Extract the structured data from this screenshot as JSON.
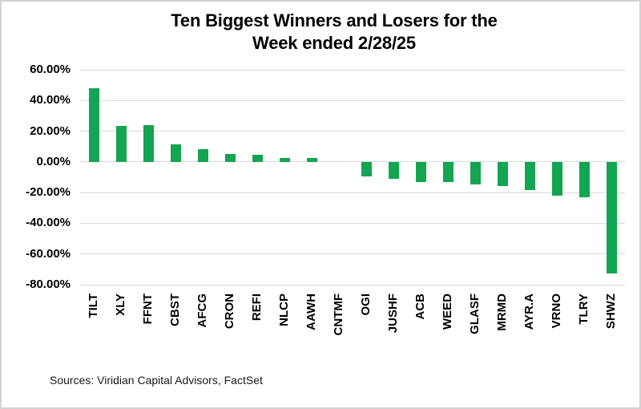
{
  "title": {
    "line1": "Ten Biggest Winners and Losers for the",
    "line2": "Week ended 2/28/25"
  },
  "source": "Sources: Viridian Capital Advisors, FactSet",
  "colors": {
    "bar": "#13a551",
    "gridline": "#d9d9d9",
    "text": "#000000",
    "border": "#d2d2d2"
  },
  "chart_data": {
    "type": "bar",
    "title": "Ten Biggest Winners and Losers for the Week ended 2/28/25",
    "categories": [
      "TILT",
      "XLY",
      "FFNT",
      "CBST",
      "AFCG",
      "CRON",
      "REFI",
      "NLCP",
      "AAWH",
      "CNTMF",
      "OGI",
      "JUSHF",
      "ACB",
      "WEED",
      "GLASF",
      "MRMD",
      "AYR.A",
      "VRNO",
      "TLRY",
      "SHWZ"
    ],
    "values": [
      48.0,
      23.5,
      23.7,
      11.3,
      8.5,
      5.3,
      4.4,
      2.4,
      2.3,
      0.0,
      -9.5,
      -11.3,
      -13.4,
      -13.0,
      -14.8,
      -16.0,
      -18.6,
      -22.0,
      -23.0,
      -72.5
    ],
    "xlabel": "",
    "ylabel": "",
    "ylim": [
      -80,
      60
    ],
    "ytick_step": 20,
    "ytick_labels": [
      "60.00%",
      "40.00%",
      "20.00%",
      "0.00%",
      "-20.00%",
      "-40.00%",
      "-60.00%",
      "-80.00%"
    ],
    "value_format": "percent",
    "grid": true,
    "legend": false,
    "bar_color": "#13a551"
  }
}
